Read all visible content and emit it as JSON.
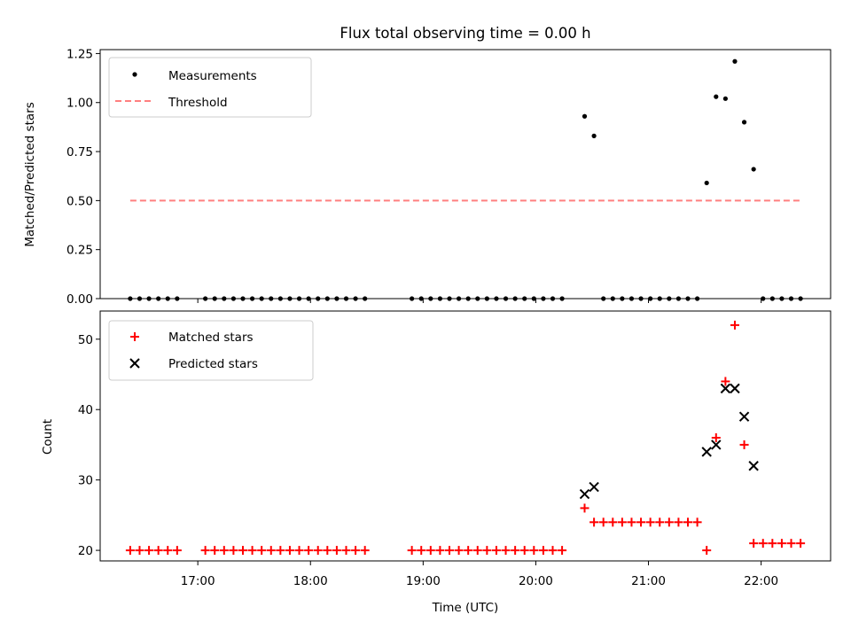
{
  "title": "Flux total observing time = 0.00 h",
  "colors": {
    "measurement": "#000000",
    "threshold": "#ff7f7f",
    "matched": "#ff0000",
    "predicted": "#000000"
  },
  "chart_data": [
    {
      "type": "scatter",
      "title": "Flux total observing time = 0.00 h",
      "xlabel": "",
      "ylabel": "Matched/Predicted stars",
      "xlim": [
        "16:08",
        "22:37"
      ],
      "ylim": [
        0,
        1.27
      ],
      "y_ticks": [
        "0.00",
        "0.25",
        "0.50",
        "0.75",
        "1.00",
        "1.25"
      ],
      "y_tick_values": [
        0,
        0.25,
        0.5,
        0.75,
        1.0,
        1.25
      ],
      "grid": false,
      "legend_position": "upper-left",
      "series": [
        {
          "name": "Measurements",
          "marker": "dot",
          "color": "#000000",
          "points": [
            [
              "16:24",
              0
            ],
            [
              "16:29",
              0
            ],
            [
              "16:34",
              0
            ],
            [
              "16:39",
              0
            ],
            [
              "16:44",
              0
            ],
            [
              "16:49",
              0
            ],
            [
              "17:04",
              0
            ],
            [
              "17:09",
              0
            ],
            [
              "17:14",
              0
            ],
            [
              "17:19",
              0
            ],
            [
              "17:24",
              0
            ],
            [
              "17:29",
              0
            ],
            [
              "17:34",
              0
            ],
            [
              "17:39",
              0
            ],
            [
              "17:44",
              0
            ],
            [
              "17:49",
              0
            ],
            [
              "17:54",
              0
            ],
            [
              "17:59",
              0
            ],
            [
              "18:04",
              0
            ],
            [
              "18:09",
              0
            ],
            [
              "18:14",
              0
            ],
            [
              "18:19",
              0
            ],
            [
              "18:24",
              0
            ],
            [
              "18:29",
              0
            ],
            [
              "18:54",
              0
            ],
            [
              "18:59",
              0
            ],
            [
              "19:04",
              0
            ],
            [
              "19:09",
              0
            ],
            [
              "19:14",
              0
            ],
            [
              "19:19",
              0
            ],
            [
              "19:24",
              0
            ],
            [
              "19:29",
              0
            ],
            [
              "19:34",
              0
            ],
            [
              "19:39",
              0
            ],
            [
              "19:44",
              0
            ],
            [
              "19:49",
              0
            ],
            [
              "19:54",
              0
            ],
            [
              "19:59",
              0
            ],
            [
              "20:04",
              0
            ],
            [
              "20:09",
              0
            ],
            [
              "20:14",
              0
            ],
            [
              "20:26",
              0.93
            ],
            [
              "20:31",
              0.83
            ],
            [
              "20:36",
              0
            ],
            [
              "20:41",
              0
            ],
            [
              "20:46",
              0
            ],
            [
              "20:51",
              0
            ],
            [
              "20:56",
              0
            ],
            [
              "21:01",
              0
            ],
            [
              "21:06",
              0
            ],
            [
              "21:11",
              0
            ],
            [
              "21:16",
              0
            ],
            [
              "21:21",
              0
            ],
            [
              "21:26",
              0
            ],
            [
              "21:31",
              0.59
            ],
            [
              "21:36",
              1.03
            ],
            [
              "21:41",
              1.02
            ],
            [
              "21:46",
              1.21
            ],
            [
              "21:51",
              0.9
            ],
            [
              "21:56",
              0.66
            ],
            [
              "22:01",
              0
            ],
            [
              "22:06",
              0
            ],
            [
              "22:11",
              0
            ],
            [
              "22:16",
              0
            ],
            [
              "22:21",
              0
            ]
          ]
        },
        {
          "name": "Threshold",
          "style": "dashed",
          "color": "#ff7f7f",
          "points": [
            [
              "16:24",
              0.5
            ],
            [
              "22:21",
              0.5
            ]
          ]
        }
      ]
    },
    {
      "type": "scatter",
      "title": "",
      "xlabel": "Time (UTC)",
      "ylabel": "Count",
      "xlim": [
        "16:08",
        "22:37"
      ],
      "ylim": [
        18.5,
        54
      ],
      "x_ticks": [
        "17:00",
        "18:00",
        "19:00",
        "20:00",
        "21:00",
        "22:00"
      ],
      "y_ticks": [
        "20",
        "30",
        "40",
        "50"
      ],
      "y_tick_values": [
        20,
        30,
        40,
        50
      ],
      "grid": false,
      "legend_position": "upper-left",
      "series": [
        {
          "name": "Matched stars",
          "marker": "plus",
          "color": "#ff0000",
          "points": [
            [
              "16:24",
              20
            ],
            [
              "16:29",
              20
            ],
            [
              "16:34",
              20
            ],
            [
              "16:39",
              20
            ],
            [
              "16:44",
              20
            ],
            [
              "16:49",
              20
            ],
            [
              "17:04",
              20
            ],
            [
              "17:09",
              20
            ],
            [
              "17:14",
              20
            ],
            [
              "17:19",
              20
            ],
            [
              "17:24",
              20
            ],
            [
              "17:29",
              20
            ],
            [
              "17:34",
              20
            ],
            [
              "17:39",
              20
            ],
            [
              "17:44",
              20
            ],
            [
              "17:49",
              20
            ],
            [
              "17:54",
              20
            ],
            [
              "17:59",
              20
            ],
            [
              "18:04",
              20
            ],
            [
              "18:09",
              20
            ],
            [
              "18:14",
              20
            ],
            [
              "18:19",
              20
            ],
            [
              "18:24",
              20
            ],
            [
              "18:29",
              20
            ],
            [
              "18:54",
              20
            ],
            [
              "18:59",
              20
            ],
            [
              "19:04",
              20
            ],
            [
              "19:09",
              20
            ],
            [
              "19:14",
              20
            ],
            [
              "19:19",
              20
            ],
            [
              "19:24",
              20
            ],
            [
              "19:29",
              20
            ],
            [
              "19:34",
              20
            ],
            [
              "19:39",
              20
            ],
            [
              "19:44",
              20
            ],
            [
              "19:49",
              20
            ],
            [
              "19:54",
              20
            ],
            [
              "19:59",
              20
            ],
            [
              "20:04",
              20
            ],
            [
              "20:09",
              20
            ],
            [
              "20:14",
              20
            ],
            [
              "20:26",
              26
            ],
            [
              "20:31",
              24
            ],
            [
              "20:36",
              24
            ],
            [
              "20:41",
              24
            ],
            [
              "20:46",
              24
            ],
            [
              "20:51",
              24
            ],
            [
              "20:56",
              24
            ],
            [
              "21:01",
              24
            ],
            [
              "21:06",
              24
            ],
            [
              "21:11",
              24
            ],
            [
              "21:16",
              24
            ],
            [
              "21:21",
              24
            ],
            [
              "21:26",
              24
            ],
            [
              "21:31",
              20
            ],
            [
              "21:36",
              36
            ],
            [
              "21:41",
              44
            ],
            [
              "21:46",
              52
            ],
            [
              "21:51",
              35
            ],
            [
              "21:56",
              21
            ],
            [
              "22:01",
              21
            ],
            [
              "22:06",
              21
            ],
            [
              "22:11",
              21
            ],
            [
              "22:16",
              21
            ],
            [
              "22:21",
              21
            ]
          ]
        },
        {
          "name": "Predicted stars",
          "marker": "x",
          "color": "#000000",
          "points": [
            [
              "20:26",
              28
            ],
            [
              "20:31",
              29
            ],
            [
              "21:31",
              34
            ],
            [
              "21:36",
              35
            ],
            [
              "21:41",
              43
            ],
            [
              "21:46",
              43
            ],
            [
              "21:51",
              39
            ],
            [
              "21:56",
              32
            ]
          ]
        }
      ]
    }
  ]
}
